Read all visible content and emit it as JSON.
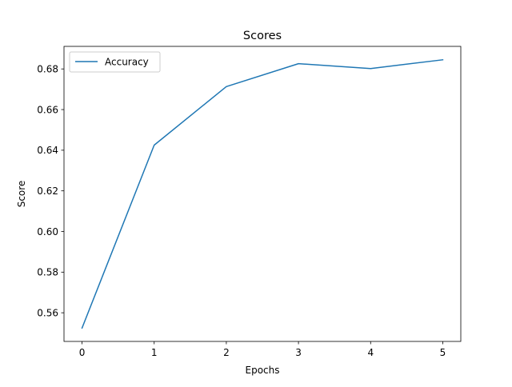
{
  "chart_data": {
    "type": "line",
    "title": "Scores",
    "xlabel": "Epochs",
    "ylabel": "Score",
    "x": [
      0,
      1,
      2,
      3,
      4,
      5
    ],
    "series": [
      {
        "name": "Accuracy",
        "color": "#1f77b4",
        "values": [
          0.5525,
          0.6425,
          0.6713,
          0.6826,
          0.6802,
          0.6845
        ]
      }
    ],
    "xticks": [
      "0",
      "1",
      "2",
      "3",
      "4",
      "5"
    ],
    "yticks": [
      "0.56",
      "0.58",
      "0.60",
      "0.62",
      "0.64",
      "0.66",
      "0.68"
    ],
    "xlim": [
      -0.25,
      5.25
    ],
    "ylim": [
      0.5459,
      0.6911
    ],
    "grid": false,
    "legend_position": "upper-left"
  }
}
